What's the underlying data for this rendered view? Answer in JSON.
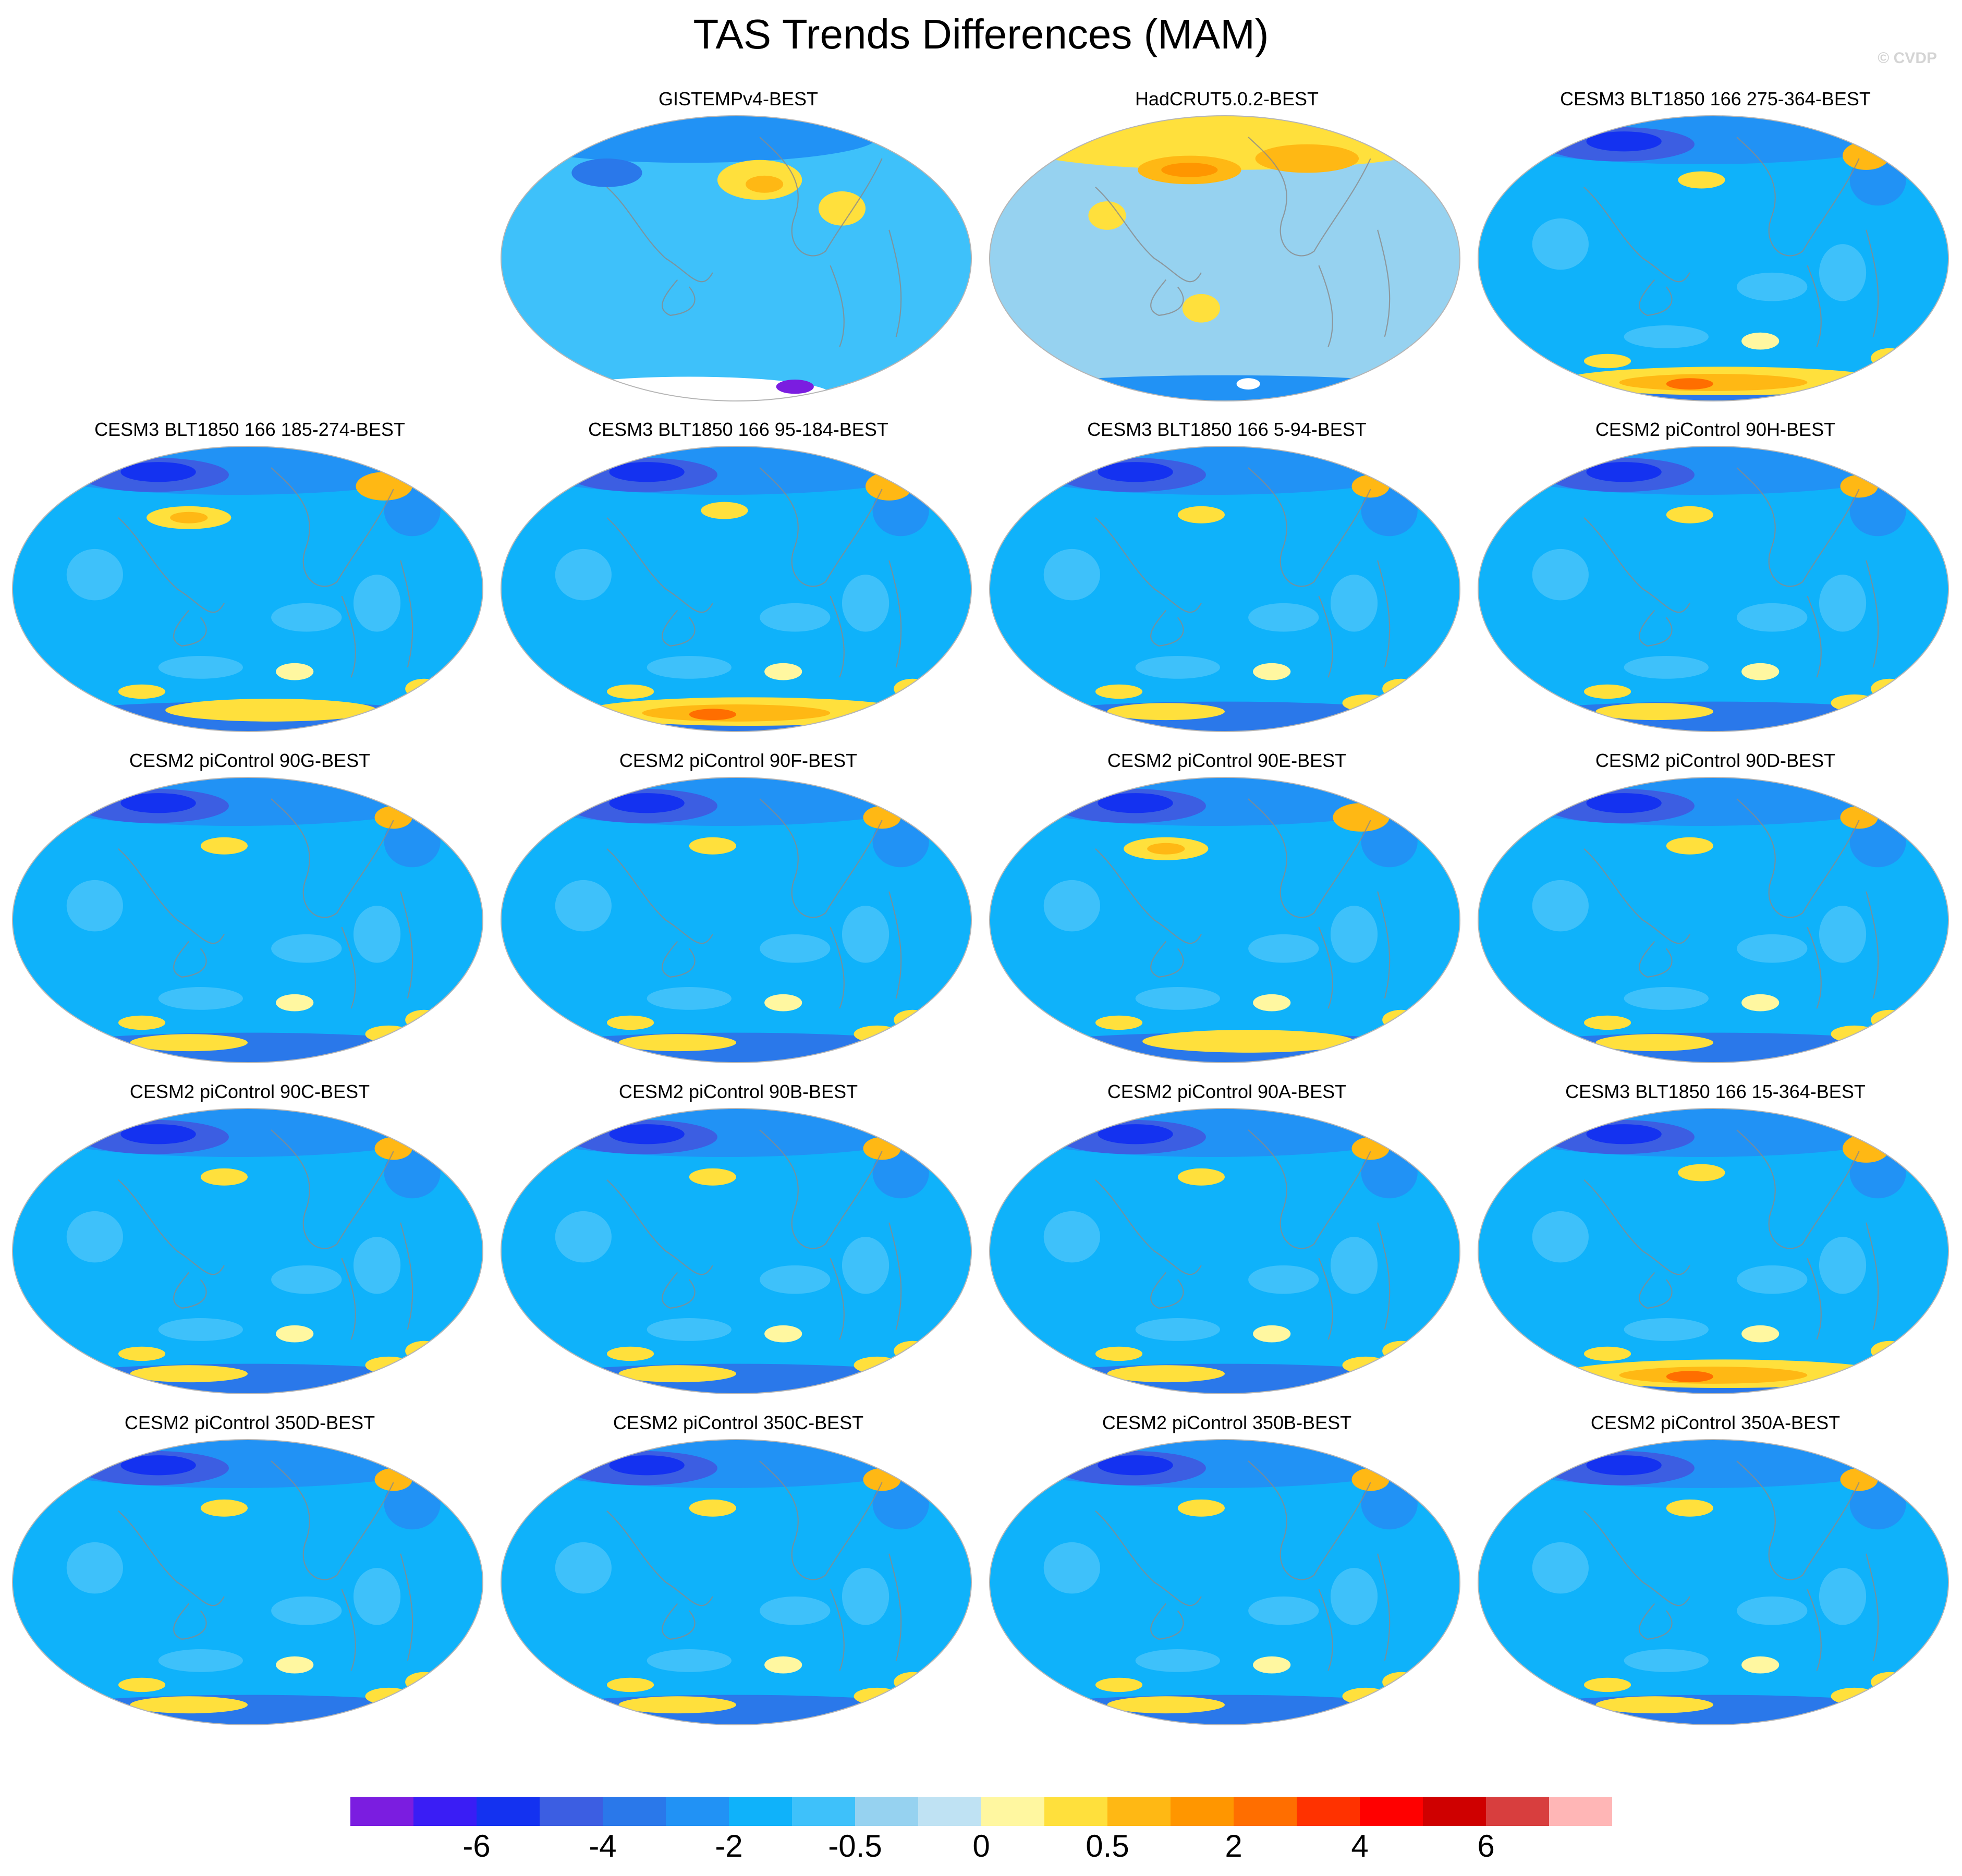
{
  "title": "TAS Trends Differences (MAM)",
  "watermark": "© CVDP",
  "panels": [
    {
      "label": "GISTEMPv4-BEST",
      "variant": "gistemp"
    },
    {
      "label": "HadCRUT5.0.2-BEST",
      "variant": "hadcrut"
    },
    {
      "label": "CESM3 BLT1850 166 275-364-BEST",
      "variant": "warm_south"
    },
    {
      "label": "CESM3 BLT1850 166 185-274-BEST",
      "variant": "warm_pacific"
    },
    {
      "label": "CESM3 BLT1850 166 95-184-BEST",
      "variant": "warm_south"
    },
    {
      "label": "CESM3 BLT1850 166 5-94-BEST",
      "variant": "model"
    },
    {
      "label": "CESM2 piControl 90H-BEST",
      "variant": "model"
    },
    {
      "label": "CESM2 piControl 90G-BEST",
      "variant": "model"
    },
    {
      "label": "CESM2 piControl 90F-BEST",
      "variant": "model"
    },
    {
      "label": "CESM2 piControl 90E-BEST",
      "variant": "warm_pacific"
    },
    {
      "label": "CESM2 piControl 90D-BEST",
      "variant": "model"
    },
    {
      "label": "CESM2 piControl 90C-BEST",
      "variant": "model"
    },
    {
      "label": "CESM2 piControl 90B-BEST",
      "variant": "model"
    },
    {
      "label": "CESM2 piControl 90A-BEST",
      "variant": "model"
    },
    {
      "label": "CESM3 BLT1850 166 15-364-BEST",
      "variant": "warm_south"
    },
    {
      "label": "CESM2 piControl 350D-BEST",
      "variant": "model"
    },
    {
      "label": "CESM2 piControl 350C-BEST",
      "variant": "model"
    },
    {
      "label": "CESM2 piControl 350B-BEST",
      "variant": "model"
    },
    {
      "label": "CESM2 piControl 350A-BEST",
      "variant": "model"
    }
  ],
  "colorbar": {
    "colors": [
      "#7b1de0",
      "#3a1df5",
      "#1432f0",
      "#3c5ee2",
      "#2a78ea",
      "#2192f5",
      "#0fb2fa",
      "#3ec1fa",
      "#96d2f0",
      "#bfe2f3",
      "#fff7a0",
      "#ffe03c",
      "#ffb814",
      "#ff9600",
      "#ff6e00",
      "#ff3200",
      "#ff0000",
      "#cf0000",
      "#d83e3e",
      "#ffb6b6"
    ],
    "labels": [
      {
        "text": "-6",
        "boundary": 2
      },
      {
        "text": "-4",
        "boundary": 4
      },
      {
        "text": "-2",
        "boundary": 6
      },
      {
        "text": "-0.5",
        "boundary": 8
      },
      {
        "text": "0",
        "boundary": 10
      },
      {
        "text": "0.5",
        "boundary": 12
      },
      {
        "text": "2",
        "boundary": 14
      },
      {
        "text": "4",
        "boundary": 16
      },
      {
        "text": "6",
        "boundary": 18
      }
    ]
  }
}
